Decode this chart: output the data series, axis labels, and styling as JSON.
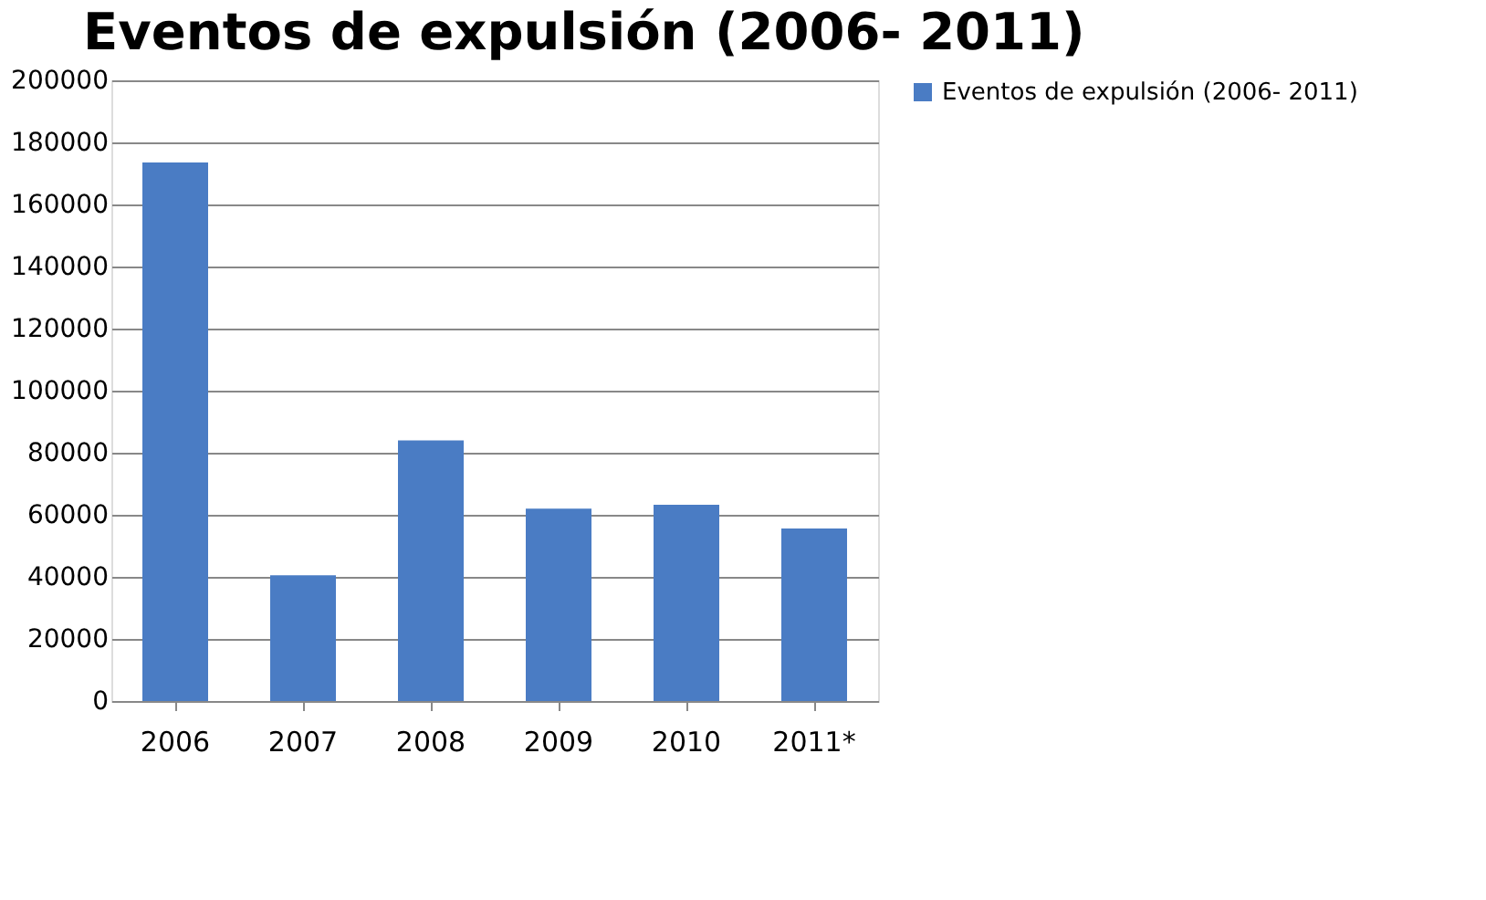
{
  "chart_data": {
    "type": "bar",
    "title": "Eventos de expulsión (2006- 2011)",
    "categories": [
      "2006",
      "2007",
      "2008",
      "2009",
      "2010",
      "2011*"
    ],
    "series": [
      {
        "name": "Eventos de expulsión (2006- 2011)",
        "color": "#4a7cc4",
        "values": [
          173500,
          40500,
          84000,
          62000,
          63200,
          55600
        ]
      }
    ],
    "ylim": [
      0,
      200000
    ],
    "yticks": [
      0,
      20000,
      40000,
      60000,
      80000,
      100000,
      120000,
      140000,
      160000,
      180000,
      200000
    ],
    "grid": "y",
    "legend": "right"
  }
}
